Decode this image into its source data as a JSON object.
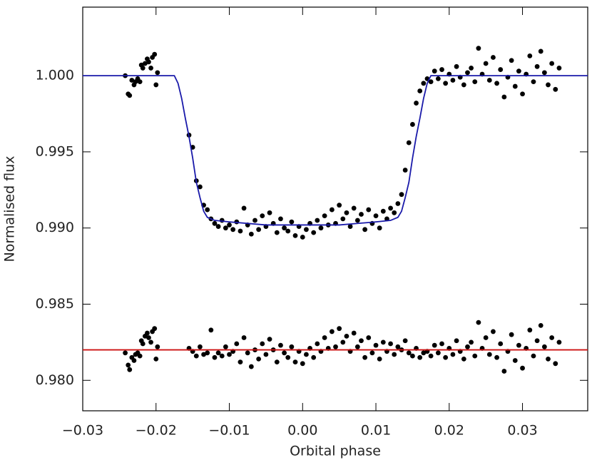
{
  "chart_data": {
    "type": "scatter",
    "xlabel": "Orbital phase",
    "ylabel": "Normalised flux",
    "xlim": [
      -0.03,
      0.0389
    ],
    "ylim": [
      0.978,
      1.0045
    ],
    "xticks": [
      {
        "value": -0.03,
        "label": "−0.03"
      },
      {
        "value": -0.02,
        "label": "−0.02"
      },
      {
        "value": -0.01,
        "label": "−0.01"
      },
      {
        "value": 0,
        "label": "0.00"
      },
      {
        "value": 0.01,
        "label": "0.01"
      },
      {
        "value": 0.02,
        "label": "0.02"
      },
      {
        "value": 0.03,
        "label": "0.03"
      }
    ],
    "yticks": [
      {
        "value": 0.98,
        "label": "0.980"
      },
      0.985,
      {
        "value": 0.99,
        "label": "0.990"
      },
      0.995,
      {
        "value": 1,
        "label": "1.000"
      }
    ],
    "series": [
      {
        "mode": "markers",
        "color": "#000000",
        "x": [
          -0.0242,
          -0.0238,
          -0.0236,
          -0.0233,
          -0.023,
          -0.0228,
          -0.0225,
          -0.0222,
          -0.022,
          -0.0218,
          -0.0215,
          -0.0212,
          -0.021,
          -0.0207,
          -0.0205,
          -0.0202,
          -0.02,
          -0.0198,
          -0.0155,
          -0.015,
          -0.0145,
          -0.014,
          -0.0135,
          -0.013,
          -0.0125,
          -0.012,
          -0.0115,
          -0.011,
          -0.0105,
          -0.01,
          -0.0095,
          -0.009,
          -0.0085,
          -0.008,
          -0.0075,
          -0.007,
          -0.0065,
          -0.006,
          -0.0055,
          -0.005,
          -0.0045,
          -0.004,
          -0.0035,
          -0.003,
          -0.0025,
          -0.002,
          -0.0015,
          -0.001,
          -0.0005,
          0,
          0.0005,
          0.001,
          0.0015,
          0.002,
          0.0025,
          0.003,
          0.0035,
          0.004,
          0.0045,
          0.005,
          0.0055,
          0.006,
          0.0065,
          0.007,
          0.0075,
          0.008,
          0.0085,
          0.009,
          0.0095,
          0.01,
          0.0105,
          0.011,
          0.0115,
          0.012,
          0.0125,
          0.013,
          0.0135,
          0.014,
          0.0145,
          0.015,
          0.0155,
          0.016,
          0.0165,
          0.017,
          0.0175,
          0.018,
          0.0185,
          0.019,
          0.0195,
          0.02,
          0.0205,
          0.021,
          0.0215,
          0.022,
          0.0225,
          0.023,
          0.0235,
          0.024,
          0.0245,
          0.025,
          0.0255,
          0.026,
          0.0265,
          0.027,
          0.0275,
          0.028,
          0.0285,
          0.029,
          0.0295,
          0.03,
          0.0305,
          0.031,
          0.0315,
          0.032,
          0.0325,
          0.033,
          0.0335,
          0.034,
          0.0345,
          0.035
        ],
        "values": [
          1.0,
          0.9988,
          0.9987,
          0.9997,
          0.9994,
          0.9996,
          0.9998,
          0.9996,
          1.0007,
          1.0005,
          1.0008,
          1.0011,
          1.0009,
          1.0005,
          1.0012,
          1.0014,
          0.9994,
          1.0002,
          0.9961,
          0.9953,
          0.9931,
          0.9927,
          0.9915,
          0.9912,
          0.9906,
          0.9903,
          0.9901,
          0.9905,
          0.99,
          0.9902,
          0.9899,
          0.9904,
          0.9898,
          0.9913,
          0.9902,
          0.9896,
          0.9905,
          0.9899,
          0.9908,
          0.9901,
          0.991,
          0.9903,
          0.9897,
          0.9906,
          0.99,
          0.9898,
          0.9904,
          0.9895,
          0.9901,
          0.9894,
          0.9899,
          0.9903,
          0.9897,
          0.9905,
          0.99,
          0.9908,
          0.9902,
          0.9912,
          0.9903,
          0.9915,
          0.9906,
          0.991,
          0.9901,
          0.9913,
          0.9905,
          0.9909,
          0.9899,
          0.9912,
          0.9903,
          0.9908,
          0.99,
          0.9911,
          0.9906,
          0.9913,
          0.991,
          0.9916,
          0.9922,
          0.9938,
          0.9956,
          0.9968,
          0.9982,
          0.999,
          0.9995,
          0.9998,
          0.9996,
          1.0003,
          0.9998,
          1.0004,
          0.9995,
          1.0001,
          0.9997,
          1.0006,
          0.9999,
          0.9994,
          1.0002,
          1.0005,
          0.9996,
          1.0018,
          1.0001,
          1.0008,
          0.9997,
          1.0012,
          0.9995,
          1.0004,
          0.9986,
          0.9999,
          1.001,
          0.9993,
          1.0003,
          0.9988,
          1.0001,
          1.0013,
          0.9996,
          1.0006,
          1.0016,
          1.0002,
          0.9994,
          1.0008,
          0.9991,
          1.0005
        ]
      },
      {
        "mode": "markers",
        "color": "#000000",
        "x": [
          -0.0242,
          -0.0238,
          -0.0236,
          -0.0233,
          -0.023,
          -0.0228,
          -0.0225,
          -0.0222,
          -0.022,
          -0.0218,
          -0.0215,
          -0.0212,
          -0.021,
          -0.0207,
          -0.0205,
          -0.0202,
          -0.02,
          -0.0198,
          -0.0155,
          -0.015,
          -0.0145,
          -0.014,
          -0.0135,
          -0.013,
          -0.0125,
          -0.012,
          -0.0115,
          -0.011,
          -0.0105,
          -0.01,
          -0.0095,
          -0.009,
          -0.0085,
          -0.008,
          -0.0075,
          -0.007,
          -0.0065,
          -0.006,
          -0.0055,
          -0.005,
          -0.0045,
          -0.004,
          -0.0035,
          -0.003,
          -0.0025,
          -0.002,
          -0.0015,
          -0.001,
          -0.0005,
          0,
          0.0005,
          0.001,
          0.0015,
          0.002,
          0.0025,
          0.003,
          0.0035,
          0.004,
          0.0045,
          0.005,
          0.0055,
          0.006,
          0.0065,
          0.007,
          0.0075,
          0.008,
          0.0085,
          0.009,
          0.0095,
          0.01,
          0.0105,
          0.011,
          0.0115,
          0.012,
          0.0125,
          0.013,
          0.0135,
          0.014,
          0.0145,
          0.015,
          0.0155,
          0.016,
          0.0165,
          0.017,
          0.0175,
          0.018,
          0.0185,
          0.019,
          0.0195,
          0.02,
          0.0205,
          0.021,
          0.0215,
          0.022,
          0.0225,
          0.023,
          0.0235,
          0.024,
          0.0245,
          0.025,
          0.0255,
          0.026,
          0.0265,
          0.027,
          0.0275,
          0.028,
          0.0285,
          0.029,
          0.0295,
          0.03,
          0.0305,
          0.031,
          0.0315,
          0.032,
          0.0325,
          0.033,
          0.0335,
          0.034,
          0.0345,
          0.035
        ],
        "values": [
          0.9818,
          0.981,
          0.9807,
          0.9815,
          0.9813,
          0.9817,
          0.9818,
          0.9816,
          0.9826,
          0.9824,
          0.9829,
          0.9831,
          0.9828,
          0.9825,
          0.9832,
          0.9834,
          0.9814,
          0.9822,
          0.9821,
          0.9819,
          0.9816,
          0.9822,
          0.9817,
          0.9818,
          0.9833,
          0.9815,
          0.9818,
          0.9816,
          0.9822,
          0.9817,
          0.9819,
          0.9824,
          0.9812,
          0.9828,
          0.9818,
          0.9809,
          0.982,
          0.9814,
          0.9824,
          0.9817,
          0.9827,
          0.982,
          0.9812,
          0.9823,
          0.9818,
          0.9815,
          0.9822,
          0.9812,
          0.9819,
          0.9811,
          0.9817,
          0.9821,
          0.9815,
          0.9824,
          0.9819,
          0.9828,
          0.9821,
          0.9832,
          0.9822,
          0.9834,
          0.9825,
          0.9829,
          0.9819,
          0.9831,
          0.9822,
          0.9826,
          0.9815,
          0.9828,
          0.9818,
          0.9823,
          0.9814,
          0.9825,
          0.9819,
          0.9824,
          0.9817,
          0.9822,
          0.982,
          0.9826,
          0.9818,
          0.9816,
          0.9821,
          0.9815,
          0.9818,
          0.9819,
          0.9816,
          0.9823,
          0.9818,
          0.9824,
          0.9815,
          0.9821,
          0.9817,
          0.9826,
          0.9819,
          0.9814,
          0.9822,
          0.9825,
          0.9816,
          0.9838,
          0.9821,
          0.9828,
          0.9817,
          0.9832,
          0.9815,
          0.9824,
          0.9806,
          0.9819,
          0.983,
          0.9813,
          0.9823,
          0.9808,
          0.9821,
          0.9833,
          0.9816,
          0.9826,
          0.9836,
          0.9822,
          0.9814,
          0.9828,
          0.9811,
          0.9825
        ]
      },
      {
        "mode": "line",
        "color": "#1a1aaa",
        "x": [
          -0.03,
          -0.0175,
          -0.017,
          -0.0165,
          -0.016,
          -0.0155,
          -0.015,
          -0.0145,
          -0.014,
          -0.0135,
          -0.013,
          -0.012,
          -0.01,
          -0.005,
          0,
          0.005,
          0.01,
          0.012,
          0.013,
          0.0135,
          0.014,
          0.0145,
          0.015,
          0.0155,
          0.016,
          0.0165,
          0.017,
          0.0175,
          0.0389
        ],
        "values": [
          1.0,
          1.0,
          0.9995,
          0.9985,
          0.9972,
          0.996,
          0.9946,
          0.993,
          0.992,
          0.9911,
          0.9907,
          0.9905,
          0.9904,
          0.9902,
          0.9902,
          0.9902,
          0.9904,
          0.9905,
          0.9907,
          0.9911,
          0.992,
          0.993,
          0.9946,
          0.996,
          0.9972,
          0.9985,
          0.9995,
          1.0,
          1.0
        ]
      },
      {
        "mode": "line",
        "color": "#cc1111",
        "x": [
          -0.03,
          0.0389
        ],
        "values": [
          0.982,
          0.982
        ]
      }
    ]
  }
}
